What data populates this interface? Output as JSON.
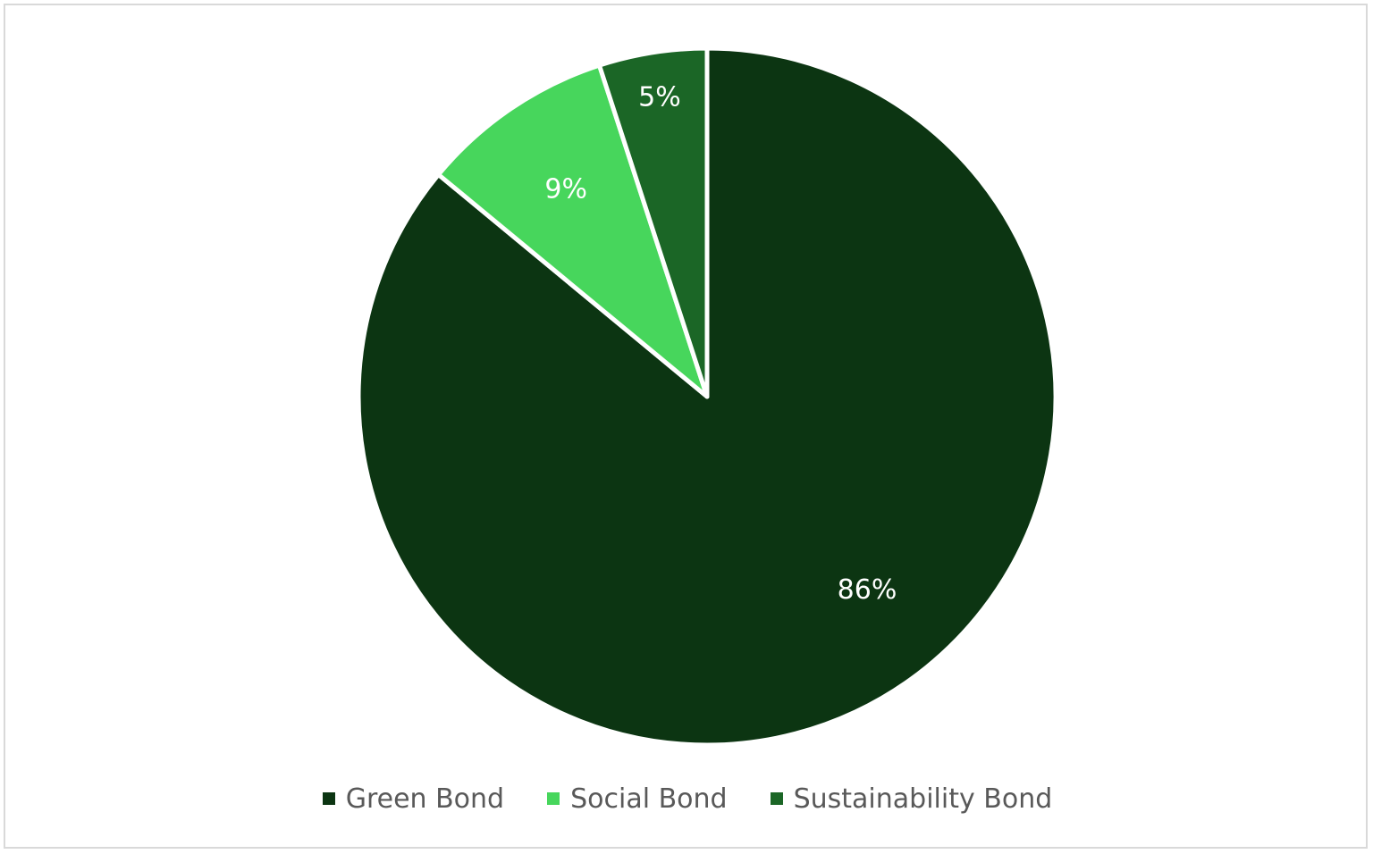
{
  "chart_data": {
    "type": "pie",
    "title": "",
    "categories": [
      "Green Bond",
      "Social Bond",
      "Sustainability Bond"
    ],
    "values": [
      86,
      9,
      5
    ],
    "data_labels": [
      "86%",
      "9%",
      "5%"
    ],
    "colors": [
      "#0c3512",
      "#47d65c",
      "#1b6626"
    ],
    "start_angle": "12 o'clock, clockwise",
    "legend_position": "bottom"
  },
  "legend": {
    "items": [
      {
        "label": "Green Bond",
        "color": "#0c3512"
      },
      {
        "label": "Social Bond",
        "color": "#47d65c"
      },
      {
        "label": "Sustainability Bond",
        "color": "#1b6626"
      }
    ]
  }
}
